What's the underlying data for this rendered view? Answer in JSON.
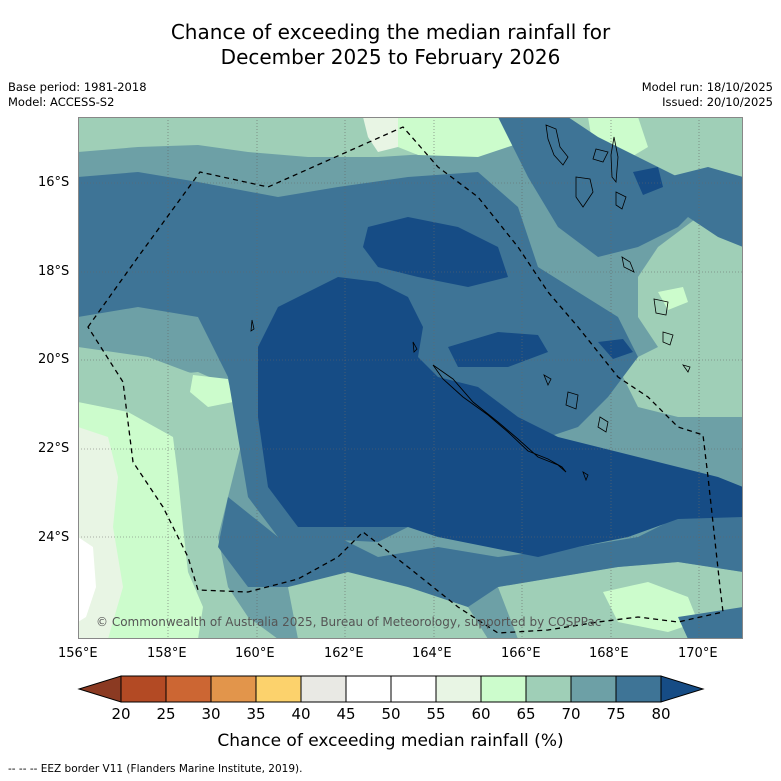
{
  "title": {
    "line1": "Chance of exceeding the median rainfall for",
    "line2": "December 2025 to February 2026"
  },
  "meta": {
    "base_period": "Base period: 1981-2018",
    "model": "Model: ACCESS-S2",
    "model_run": "Model run: 18/10/2025",
    "issued": "Issued: 20/10/2025"
  },
  "map": {
    "lon_labels": [
      "156°E",
      "158°E",
      "160°E",
      "162°E",
      "164°E",
      "166°E",
      "168°E",
      "170°E"
    ],
    "lat_labels": [
      "16°S",
      "18°S",
      "20°S",
      "22°S",
      "24°S"
    ],
    "copyright": "© Commonwealth of Australia 2025, Bureau of Meteorology, supported by COSPPac"
  },
  "colorbar": {
    "title": "Chance of exceeding median rainfall (%)",
    "ticks": [
      "20",
      "25",
      "30",
      "35",
      "40",
      "45",
      "50",
      "55",
      "60",
      "65",
      "70",
      "75",
      "80"
    ],
    "colors": {
      "below20": "#8b3a22",
      "c20_25": "#b34a24",
      "c25_30": "#cc6633",
      "c30_35": "#e2954b",
      "c35_40": "#fcd26c",
      "c40_45": "#e9e9e4",
      "c45_50": "#ffffff",
      "c50_55": "#ffffff",
      "c55_60": "#e8f5e4",
      "c60_65": "#ccfccc",
      "c65_70": "#9fcfb7",
      "c70_75": "#6da0a6",
      "c75_80": "#3e7496",
      "above80": "#164c85"
    }
  },
  "footnote": "-- -- -- EEZ border V11 (Flanders Marine Institute, 2019)."
}
